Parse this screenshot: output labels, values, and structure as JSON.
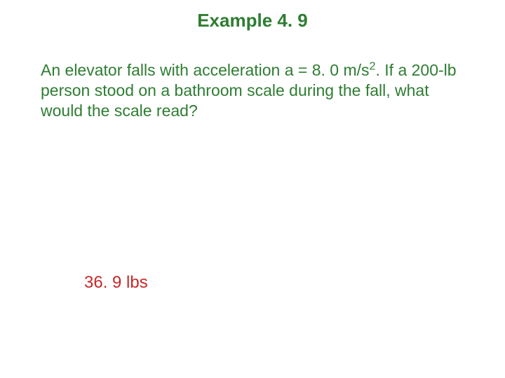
{
  "title": {
    "text": "Example 4. 9",
    "color": "#2e7d32",
    "font_size": 26,
    "font_weight": "bold"
  },
  "problem": {
    "line1_pre": "An elevator falls with acceleration a = 8. 0 m/s",
    "line1_sup": "2",
    "line1_post": ". If a 200-lb person stood on a bathroom scale during the fall, what would the scale read?",
    "color": "#2e7d32",
    "font_size": 23
  },
  "answer": {
    "text": "36. 9 lbs",
    "color": "#c62828",
    "font_size": 24
  },
  "background_color": "#ffffff",
  "font_family": "Comic Sans MS"
}
